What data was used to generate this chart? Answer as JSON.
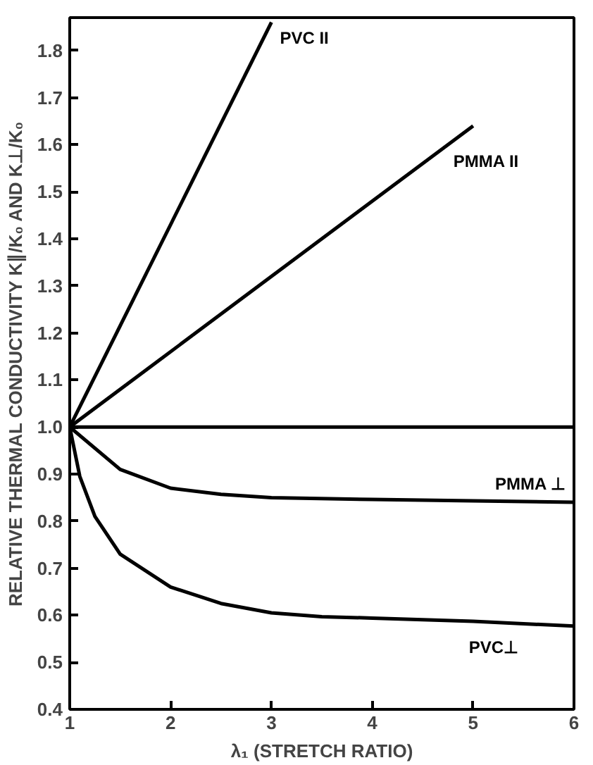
{
  "chart_data": {
    "type": "line",
    "xlabel": "λ₁ (STRETCH RATIO)",
    "ylabel": "RELATIVE THERMAL CONDUCTIVITY K∥/K₀ AND K⊥/K₀",
    "xlim": [
      1,
      6
    ],
    "ylim": [
      0.4,
      1.87
    ],
    "xticks": [
      1,
      2,
      3,
      4,
      5,
      6
    ],
    "yticks": [
      0.4,
      0.5,
      0.6,
      0.7,
      0.8,
      0.9,
      {
        "value": 1.0,
        "label": "1.0"
      },
      1.1,
      1.2,
      1.3,
      1.4,
      1.5,
      1.6,
      1.7,
      1.8
    ],
    "grid": false,
    "marker": "none",
    "line_style": "solid",
    "series": [
      {
        "name": "PVC II",
        "color": "#000000",
        "x": [
          1,
          3
        ],
        "values": [
          1.0,
          1.86
        ]
      },
      {
        "name": "PMMA II",
        "color": "#000000",
        "x": [
          1,
          5
        ],
        "values": [
          1.0,
          1.64
        ]
      },
      {
        "color": "#000000",
        "x": [
          1,
          6
        ],
        "values": [
          1.0,
          1.0
        ]
      },
      {
        "name": "PMMA ⊥",
        "color": "#000000",
        "x": [
          1,
          1.5,
          2,
          2.5,
          3,
          4,
          5,
          6
        ],
        "values": [
          1.0,
          0.91,
          0.87,
          0.857,
          0.85,
          0.846,
          0.843,
          0.84
        ]
      },
      {
        "name": "PVC⊥",
        "color": "#000000",
        "x": [
          1,
          1.1,
          1.25,
          1.5,
          2,
          2.5,
          3,
          3.5,
          4,
          5,
          6
        ],
        "values": [
          1.0,
          0.895,
          0.81,
          0.73,
          0.66,
          0.625,
          0.605,
          0.597,
          0.594,
          0.587,
          0.577
        ]
      }
    ]
  }
}
